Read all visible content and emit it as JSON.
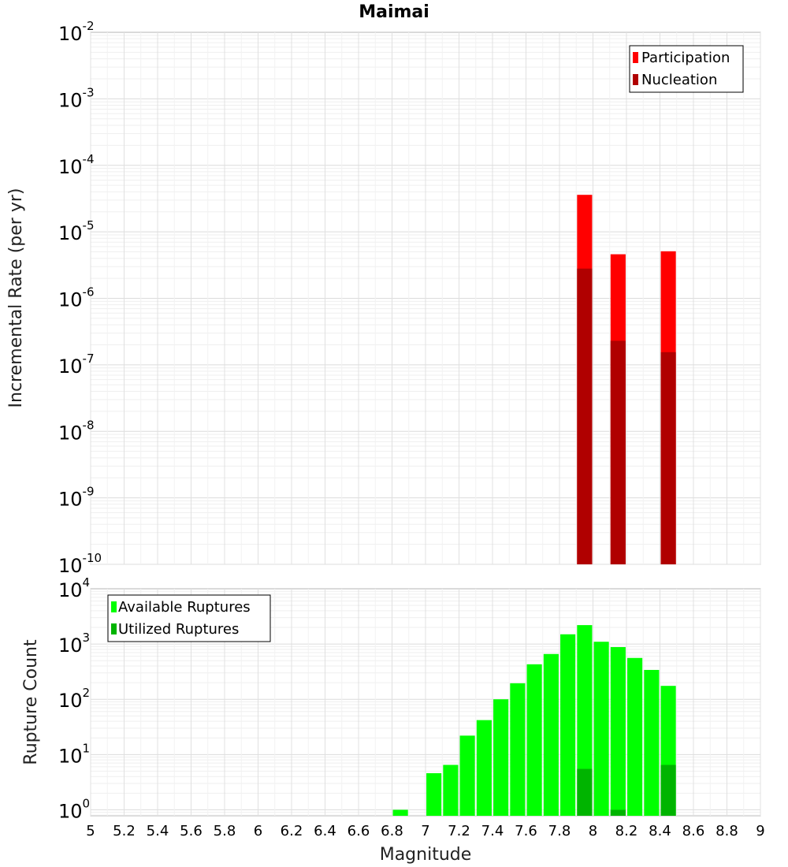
{
  "chart_data": {
    "title": "Maimai",
    "xlabel": "Magnitude",
    "xlim": [
      5,
      9
    ],
    "x_ticks": [
      "5",
      "5.2",
      "5.4",
      "5.6",
      "5.8",
      "6",
      "6.2",
      "6.4",
      "6.6",
      "6.8",
      "7",
      "7.2",
      "7.4",
      "7.6",
      "7.8",
      "8",
      "8.2",
      "8.4",
      "8.6",
      "8.8",
      "9"
    ],
    "grid": true,
    "panels": [
      {
        "type": "bar",
        "scale": "log",
        "ylabel": "Incremental Rate (per yr)",
        "ylim": [
          1e-10,
          0.01
        ],
        "y_ticks": [
          {
            "base": "10",
            "exp": "-2"
          },
          {
            "base": "10",
            "exp": "-3"
          },
          {
            "base": "10",
            "exp": "-4"
          },
          {
            "base": "10",
            "exp": "-5"
          },
          {
            "base": "10",
            "exp": "-6"
          },
          {
            "base": "10",
            "exp": "-7"
          },
          {
            "base": "10",
            "exp": "-8"
          },
          {
            "base": "10",
            "exp": "-9"
          },
          {
            "base": "10",
            "exp": "-10"
          }
        ],
        "legend_position": "top-right",
        "series": [
          {
            "name": "Participation",
            "color": "#ff0000",
            "x": [
              7.95,
              8.15,
              8.45
            ],
            "values": [
              3.6e-05,
              4.6e-06,
              5.1e-06
            ]
          },
          {
            "name": "Nucleation",
            "color": "#b00000",
            "x": [
              7.95,
              8.15,
              8.45
            ],
            "values": [
              2.8e-06,
              2.3e-07,
              1.55e-07
            ]
          }
        ]
      },
      {
        "type": "bar",
        "scale": "log",
        "ylabel": "Rupture Count",
        "ylim": [
          0.78,
          10000
        ],
        "y_ticks": [
          {
            "base": "10",
            "exp": "4"
          },
          {
            "base": "10",
            "exp": "3"
          },
          {
            "base": "10",
            "exp": "2"
          },
          {
            "base": "10",
            "exp": "1"
          },
          {
            "base": "10",
            "exp": "0"
          }
        ],
        "legend_position": "top-left",
        "series": [
          {
            "name": "Available Ruptures",
            "color": "#00ff00",
            "x": [
              6.85,
              7.05,
              7.15,
              7.25,
              7.35,
              7.45,
              7.55,
              7.65,
              7.75,
              7.85,
              7.95,
              8.05,
              8.15,
              8.25,
              8.35,
              8.45
            ],
            "values": [
              1,
              4.6,
              6.5,
              22,
              42,
              100,
              195,
              430,
              660,
              1500,
              2200,
              1100,
              880,
              560,
              340,
              175
            ]
          },
          {
            "name": "Utilized Ruptures",
            "color": "#00b400",
            "x": [
              7.95,
              8.15,
              8.45
            ],
            "values": [
              5.5,
              1,
              6.5
            ]
          }
        ]
      }
    ]
  }
}
